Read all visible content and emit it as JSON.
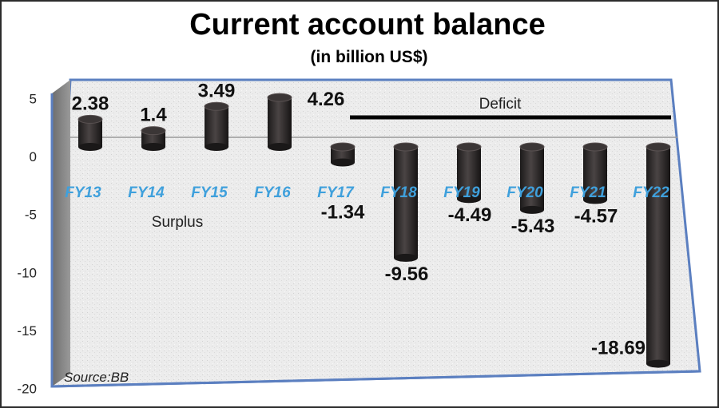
{
  "chart_data": {
    "type": "bar",
    "title": "Current account balance",
    "subtitle": "(in billion US$)",
    "categories": [
      "FY13",
      "FY14",
      "FY15",
      "FY16",
      "FY17",
      "FY18",
      "FY19",
      "FY20",
      "FY21",
      "FY22"
    ],
    "values": [
      2.38,
      1.4,
      3.49,
      4.26,
      -1.34,
      -9.56,
      -4.49,
      -5.43,
      -4.57,
      -18.69
    ],
    "data_labels": [
      "2.38",
      "1.4",
      "3.49",
      "4.26",
      "-1.34",
      "-9.56",
      "-4.49",
      "-5.43",
      "-4.57",
      "-18.69"
    ],
    "yticks": [
      5,
      0,
      -5,
      -10,
      -15,
      -20
    ],
    "ylim": [
      -20,
      5
    ],
    "grid": false,
    "annotations": {
      "surplus": "Surplus",
      "deficit": "Deficit"
    },
    "source": "Source:BB",
    "colors": {
      "bar": "#2e2a2a",
      "category_text": "#3fa0dc",
      "frame": "#5b7fc0"
    }
  }
}
